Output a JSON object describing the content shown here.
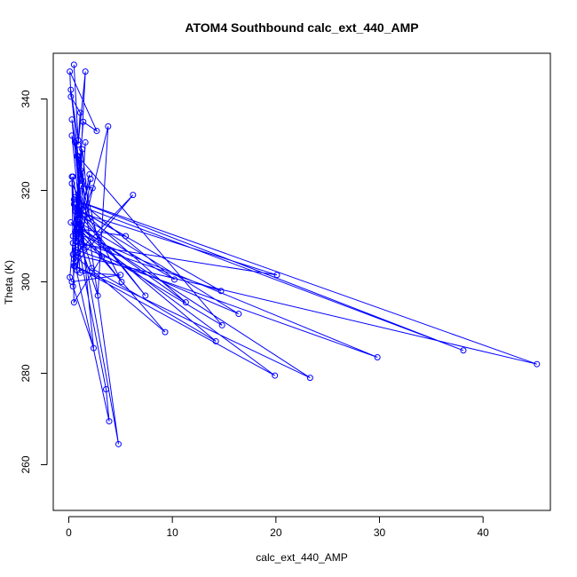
{
  "chart_data": {
    "type": "line",
    "title": "ATOM4 Southbound calc_ext_440_AMP",
    "xlabel": "calc_ext_440_AMP",
    "ylabel": "Theta (K)",
    "xlim": [
      -1.5,
      46.5
    ],
    "ylim": [
      250,
      350
    ],
    "x_ticks": [
      0,
      10,
      20,
      30,
      40
    ],
    "y_ticks": [
      260,
      280,
      300,
      320,
      340
    ],
    "x_tick_labels": [
      "0",
      "10",
      "20",
      "30",
      "40"
    ],
    "y_tick_labels": [
      "260",
      "280",
      "300",
      "320",
      "340"
    ],
    "grid": false,
    "legend": "none",
    "series_color": "#0000ff",
    "marker": "open-circle",
    "series": [
      {
        "x": [
          0.5,
          0.9,
          0.2,
          1.0,
          0.3,
          1.1,
          0.6,
          1.2,
          0.4,
          1.5,
          0.8,
          2.0,
          1.3,
          0.7,
          3.6,
          3.9,
          0.5,
          1.0,
          4.8,
          0.9,
          1.2,
          2.3,
          0.6,
          1.1,
          0.4,
          2.4,
          0.3,
          1.4,
          0.9,
          2.8,
          3.8,
          0.5,
          6.2,
          0.9,
          1.0,
          10.2,
          0.6,
          1.3,
          5.5,
          0.8,
          14.7,
          0.7,
          2.0,
          1.0,
          14.2,
          2.2,
          0.6,
          20.1,
          0.4,
          16.4,
          1.1,
          7.4,
          0.5,
          11.3,
          0.8,
          5.1,
          0.3,
          0.7,
          29.8,
          0.9,
          1.2,
          38.1,
          0.5,
          45.2,
          0.4,
          9.3,
          0.2,
          23.3,
          0.6,
          19.9,
          0.8,
          1.6,
          0.9,
          1.1,
          0.2,
          0.1,
          2.7,
          1.4,
          0.1,
          0.3,
          5.0,
          1.1,
          0.3,
          0.5,
          3.2,
          0.9,
          14.8,
          0.4,
          2.1,
          0.8,
          1.6
        ],
        "y": [
          347.5,
          331.0,
          342.0,
          325.5,
          335.5,
          318.0,
          330.5,
          312.5,
          323.0,
          307.5,
          327.5,
          314.0,
          329.0,
          310.5,
          276.5,
          269.5,
          305.0,
          326.0,
          264.5,
          313.5,
          321.0,
          320.5,
          311.0,
          324.5,
          299.0,
          285.5,
          332.0,
          322.0,
          309.5,
          297.0,
          334.0,
          303.5,
          319.0,
          306.5,
          313.0,
          300.5,
          318.5,
          311.5,
          310.0,
          316.0,
          298.0,
          309.0,
          323.5,
          312.0,
          287.0,
          303.0,
          315.5,
          301.5,
          308.5,
          293.0,
          314.5,
          297.0,
          317.0,
          295.5,
          312.5,
          300.0,
          321.5,
          307.0,
          283.5,
          310.5,
          316.5,
          285.0,
          318.0,
          282.0,
          306.0,
          289.0,
          313.0,
          279.0,
          303.5,
          279.5,
          311.5,
          346.0,
          330.0,
          337.0,
          340.5,
          346.0,
          333.0,
          335.0,
          301.0,
          300.0,
          301.5,
          302.0,
          323.0,
          295.5,
          305.5,
          327.5,
          290.5,
          310.0,
          322.5,
          302.5,
          330.5
        ]
      }
    ]
  }
}
